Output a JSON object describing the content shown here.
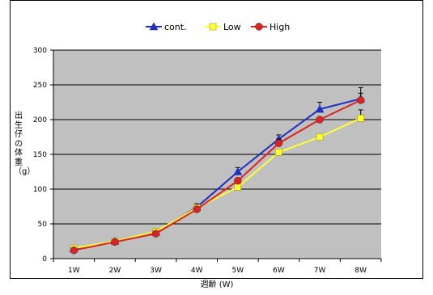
{
  "chart_data": {
    "type": "line",
    "categories": [
      "1W",
      "2W",
      "3W",
      "4W",
      "5W",
      "6W",
      "7W",
      "8W"
    ],
    "xlabel": "週齢 (W)",
    "ylabel": "出生仔の体重（g）",
    "ylim": [
      0,
      300
    ],
    "yticks": [
      0,
      50,
      100,
      150,
      200,
      250,
      300
    ],
    "grid": true,
    "legend": "top",
    "series": [
      {
        "name": "cont.",
        "color": "#1f2fbf",
        "marker": "triangle",
        "values": [
          14,
          25,
          38,
          74,
          125,
          172,
          215,
          230
        ],
        "errors": [
          0,
          0,
          0,
          5,
          6,
          6,
          10,
          16
        ]
      },
      {
        "name": "Low",
        "color": "#ffff33",
        "marker": "square",
        "values": [
          15,
          25,
          39,
          73,
          103,
          153,
          175,
          202
        ],
        "errors": [
          0,
          0,
          0,
          4,
          0,
          0,
          0,
          12
        ]
      },
      {
        "name": "High",
        "color": "#dd2222",
        "marker": "circle",
        "values": [
          12,
          24,
          36,
          71,
          112,
          166,
          200,
          228
        ],
        "errors": [
          0,
          0,
          0,
          4,
          0,
          6,
          0,
          10
        ]
      }
    ]
  }
}
